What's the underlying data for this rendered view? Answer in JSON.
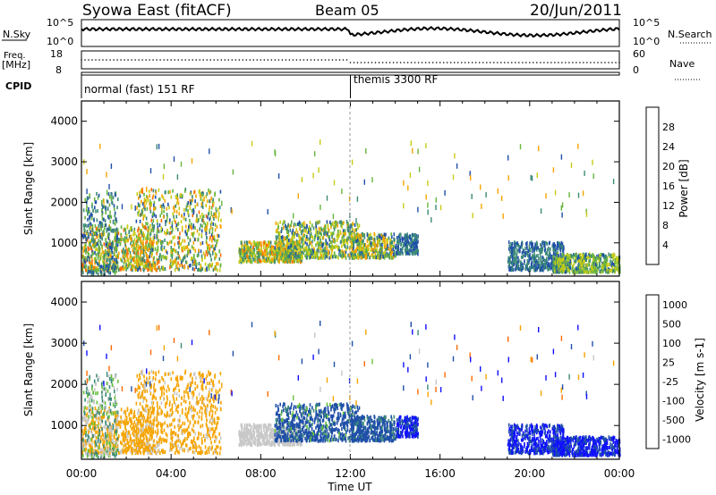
{
  "header": {
    "station": "Syowa East (fitACF)",
    "beam": "Beam 05",
    "date": "20/Jun/2011"
  },
  "panels": {
    "nsky": {
      "label": "N.Sky",
      "y_top": "10^5",
      "y_bottom": "10^0",
      "right_label": "N.Search",
      "right_top": "10^5",
      "right_bottom": "10^0"
    },
    "freq": {
      "label_line1": "Freq.",
      "label_line2": "[MHz]",
      "y_top": "18",
      "y_bottom": "8",
      "right_label": "Nave",
      "right_top": "60",
      "right_bottom": "0"
    },
    "cpid": {
      "label": "CPID",
      "modes": [
        {
          "name": "normal (fast) 151 RF",
          "start": 0
        },
        {
          "name": "themis 3300 RF",
          "start": 12.0
        }
      ]
    }
  },
  "colors": {
    "power": [
      "#1010ff",
      "#1f4fa8",
      "#3c8a78",
      "#68b53e",
      "#c7cc14",
      "#f5a400",
      "#ff6a00",
      "#f00000"
    ],
    "velocity": [
      "#f00000",
      "#ff6a00",
      "#f5a400",
      "#c8c8c8",
      "#68c23a",
      "#3c8a78",
      "#1f4fa8",
      "#1010ff"
    ],
    "gray": "#bdbdbd"
  },
  "chart_data": [
    {
      "type": "heatmap",
      "name": "power",
      "ylabel": "Slant Range [km]",
      "xlabel": "Time UT",
      "x_range": [
        0,
        24
      ],
      "ylim": [
        180,
        4500
      ],
      "y_ticks": [
        "1000",
        "2000",
        "3000",
        "4000"
      ],
      "x_ticks": [
        "00:00",
        "04:00",
        "08:00",
        "12:00",
        "16:00",
        "20:00",
        "00:00"
      ],
      "colorbar": {
        "label": "Power [dB]",
        "ticks": [
          "4",
          "8",
          "12",
          "16",
          "20",
          "24",
          "28"
        ],
        "range": [
          0,
          32
        ]
      },
      "regions": [
        {
          "t": [
            0.0,
            3.2
          ],
          "r": [
            300,
            1400
          ],
          "v": [
            8,
            28
          ]
        },
        {
          "t": [
            2.4,
            6.2
          ],
          "r": [
            300,
            2300
          ],
          "v": [
            6,
            26
          ]
        },
        {
          "t": [
            0.0,
            1.6
          ],
          "r": [
            200,
            2200
          ],
          "v": [
            4,
            16
          ]
        },
        {
          "t": [
            7.0,
            9.8
          ],
          "r": [
            500,
            1000
          ],
          "v": [
            8,
            26
          ]
        },
        {
          "t": [
            8.6,
            12.5
          ],
          "r": [
            600,
            1500
          ],
          "v": [
            6,
            22
          ]
        },
        {
          "t": [
            12.0,
            14.0
          ],
          "r": [
            600,
            1200
          ],
          "v": [
            6,
            24
          ]
        },
        {
          "t": [
            14.0,
            15.0
          ],
          "r": [
            700,
            1200
          ],
          "v": [
            4,
            12
          ]
        },
        {
          "t": [
            19.0,
            21.5
          ],
          "r": [
            300,
            1000
          ],
          "v": [
            4,
            12
          ]
        },
        {
          "t": [
            21.0,
            24.0
          ],
          "r": [
            250,
            700
          ],
          "v": [
            6,
            20
          ]
        }
      ]
    },
    {
      "type": "heatmap",
      "name": "velocity",
      "ylabel": "Slant Range [km]",
      "xlabel": "Time UT",
      "x_range": [
        0,
        24
      ],
      "ylim": [
        180,
        4500
      ],
      "y_ticks": [
        "1000",
        "2000",
        "3000",
        "4000"
      ],
      "x_ticks": [
        "00:00",
        "04:00",
        "08:00",
        "12:00",
        "16:00",
        "20:00",
        "00:00"
      ],
      "colorbar": {
        "label": "Velocity [m s-1]",
        "ticks": [
          "1000",
          "500",
          "100",
          "25",
          "-25",
          "-100",
          "-500",
          "-1000"
        ],
        "range": [
          -1250,
          1250
        ]
      },
      "regions": [
        {
          "t": [
            0.0,
            3.2
          ],
          "r": [
            300,
            1400
          ],
          "v": [
            -500,
            -25
          ]
        },
        {
          "t": [
            2.4,
            6.2
          ],
          "r": [
            300,
            2300
          ],
          "v": [
            -500,
            -25
          ]
        },
        {
          "t": [
            0.0,
            1.6
          ],
          "r": [
            200,
            2200
          ],
          "v": [
            -100,
            100
          ]
        },
        {
          "t": [
            7.0,
            9.8
          ],
          "r": [
            500,
            1000
          ],
          "v": [
            -100,
            -25
          ]
        },
        {
          "t": [
            8.6,
            12.5
          ],
          "r": [
            600,
            1500
          ],
          "v": [
            -25,
            500
          ]
        },
        {
          "t": [
            12.0,
            14.0
          ],
          "r": [
            600,
            1200
          ],
          "v": [
            25,
            500
          ]
        },
        {
          "t": [
            14.0,
            15.0
          ],
          "r": [
            700,
            1200
          ],
          "v": [
            100,
            1000
          ]
        },
        {
          "t": [
            19.0,
            21.5
          ],
          "r": [
            300,
            1000
          ],
          "v": [
            100,
            1000
          ]
        },
        {
          "t": [
            21.0,
            24.0
          ],
          "r": [
            250,
            700
          ],
          "v": [
            100,
            1000
          ]
        }
      ]
    }
  ]
}
